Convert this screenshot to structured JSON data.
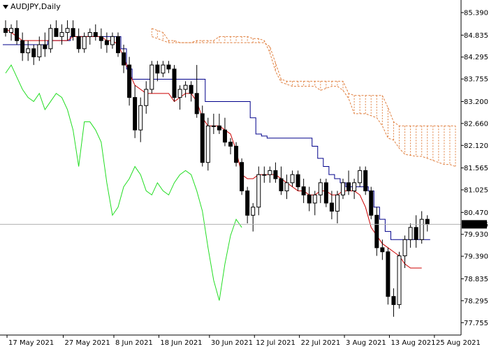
{
  "header": {
    "symbol_label": "AUDJPY,Daily"
  },
  "colors": {
    "background": "#ffffff",
    "axis": "#000000",
    "kijun": "#00008b",
    "tenkan": "#cc0000",
    "chikou": "#22dd22",
    "cloud": "#e08040",
    "current_line": "#b0b0b0",
    "price_box": "#000000"
  },
  "chart_data": {
    "type": "candlestick",
    "title": "AUDJPY,Daily",
    "current_price": 80.176,
    "current_price_label": "80.176",
    "ylim": [
      77.45,
      85.7
    ],
    "y_ticks": [
      "85.390",
      "84.835",
      "84.295",
      "83.755",
      "83.200",
      "82.660",
      "82.120",
      "81.565",
      "81.025",
      "80.470",
      "79.930",
      "79.390",
      "78.835",
      "78.295",
      "77.755"
    ],
    "x_tick_labels": [
      "17 May 2021",
      "27 May 2021",
      "8 Jun 2021",
      "18 Jun 2021",
      "30 Jun 2021",
      "12 Jul 2021",
      "22 Jul 2021",
      "3 Aug 2021",
      "13 Aug 2021",
      "25 Aug 2021"
    ],
    "x_tick_index": [
      1,
      11,
      20,
      28,
      37,
      45,
      53,
      61,
      69,
      77
    ],
    "candles_ohlc": [
      [
        85.0,
        85.2,
        84.8,
        84.9
      ],
      [
        84.9,
        85.1,
        84.7,
        85.0
      ],
      [
        85.0,
        85.2,
        84.6,
        84.7
      ],
      [
        84.7,
        84.9,
        84.2,
        84.4
      ],
      [
        84.4,
        84.7,
        84.2,
        84.5
      ],
      [
        84.5,
        84.6,
        84.1,
        84.3
      ],
      [
        84.3,
        84.8,
        84.2,
        84.6
      ],
      [
        84.6,
        84.9,
        84.3,
        84.5
      ],
      [
        84.5,
        85.1,
        84.4,
        85.0
      ],
      [
        85.0,
        85.2,
        84.8,
        84.8
      ],
      [
        84.8,
        85.1,
        84.6,
        84.9
      ],
      [
        84.9,
        85.2,
        84.7,
        85.0
      ],
      [
        85.0,
        85.2,
        84.7,
        84.8
      ],
      [
        84.8,
        85.0,
        84.4,
        84.5
      ],
      [
        84.5,
        84.9,
        84.4,
        84.8
      ],
      [
        84.8,
        85.0,
        84.6,
        84.9
      ],
      [
        84.9,
        85.1,
        84.7,
        84.8
      ],
      [
        84.8,
        85.0,
        84.5,
        84.7
      ],
      [
        84.7,
        84.9,
        84.4,
        84.6
      ],
      [
        84.6,
        84.9,
        84.5,
        84.8
      ],
      [
        84.8,
        84.9,
        84.3,
        84.4
      ],
      [
        84.4,
        84.6,
        83.9,
        84.1
      ],
      [
        84.1,
        84.3,
        83.1,
        83.3
      ],
      [
        83.3,
        83.6,
        82.3,
        82.5
      ],
      [
        82.5,
        83.3,
        82.2,
        83.1
      ],
      [
        83.1,
        83.7,
        82.9,
        83.5
      ],
      [
        83.5,
        84.2,
        83.4,
        84.1
      ],
      [
        84.1,
        84.2,
        83.7,
        83.9
      ],
      [
        83.9,
        84.2,
        83.8,
        84.1
      ],
      [
        84.1,
        84.2,
        83.9,
        84.0
      ],
      [
        84.0,
        84.1,
        83.2,
        83.3
      ],
      [
        83.3,
        83.6,
        83.0,
        83.5
      ],
      [
        83.5,
        83.7,
        83.3,
        83.6
      ],
      [
        83.6,
        83.7,
        83.2,
        83.4
      ],
      [
        83.4,
        84.1,
        82.8,
        82.9
      ],
      [
        82.9,
        83.1,
        81.6,
        81.7
      ],
      [
        81.7,
        82.8,
        81.5,
        82.6
      ],
      [
        82.6,
        82.9,
        82.4,
        82.6
      ],
      [
        82.6,
        82.9,
        82.4,
        82.5
      ],
      [
        82.5,
        82.8,
        82.1,
        82.2
      ],
      [
        82.2,
        82.3,
        81.9,
        82.1
      ],
      [
        82.1,
        82.2,
        81.6,
        81.7
      ],
      [
        81.7,
        81.8,
        80.9,
        81.0
      ],
      [
        81.0,
        81.1,
        80.2,
        80.4
      ],
      [
        80.4,
        80.7,
        80.0,
        80.6
      ],
      [
        80.6,
        81.6,
        80.4,
        81.4
      ],
      [
        81.4,
        81.6,
        81.2,
        81.4
      ],
      [
        81.4,
        81.6,
        81.2,
        81.5
      ],
      [
        81.5,
        81.7,
        81.2,
        81.3
      ],
      [
        81.3,
        81.6,
        80.9,
        81.0
      ],
      [
        81.0,
        81.4,
        80.8,
        81.2
      ],
      [
        81.2,
        81.5,
        81.1,
        81.4
      ],
      [
        81.4,
        81.5,
        81.0,
        81.1
      ],
      [
        81.1,
        81.3,
        80.7,
        80.9
      ],
      [
        80.9,
        81.1,
        80.5,
        80.7
      ],
      [
        80.7,
        81.0,
        80.4,
        80.9
      ],
      [
        80.9,
        81.3,
        80.7,
        81.2
      ],
      [
        81.2,
        81.3,
        80.6,
        80.7
      ],
      [
        80.7,
        81.0,
        80.3,
        80.5
      ],
      [
        80.5,
        81.0,
        80.2,
        80.9
      ],
      [
        80.9,
        81.3,
        80.8,
        81.2
      ],
      [
        81.2,
        81.5,
        80.9,
        81.0
      ],
      [
        81.0,
        81.3,
        80.8,
        81.2
      ],
      [
        81.2,
        81.6,
        81.1,
        81.5
      ],
      [
        81.5,
        81.6,
        80.9,
        81.0
      ],
      [
        81.0,
        81.1,
        80.3,
        80.4
      ],
      [
        80.4,
        80.6,
        79.4,
        79.6
      ],
      [
        79.6,
        79.8,
        79.3,
        79.5
      ],
      [
        79.5,
        79.6,
        78.2,
        78.4
      ],
      [
        78.4,
        78.6,
        77.9,
        78.2
      ],
      [
        78.2,
        79.5,
        78.1,
        79.4
      ],
      [
        79.4,
        79.9,
        79.1,
        79.8
      ],
      [
        79.8,
        80.2,
        79.6,
        80.1
      ],
      [
        80.1,
        80.4,
        79.6,
        79.8
      ],
      [
        79.8,
        80.5,
        79.7,
        80.3
      ],
      [
        80.3,
        80.4,
        80.0,
        80.176
      ]
    ],
    "kijun_sen": [
      84.6,
      84.6,
      84.6,
      84.6,
      84.6,
      84.6,
      84.6,
      84.6,
      84.7,
      84.7,
      84.7,
      84.7,
      84.8,
      84.8,
      84.8,
      84.8,
      84.8,
      84.8,
      84.8,
      84.8,
      84.8,
      84.5,
      84.0,
      83.75,
      83.75,
      83.75,
      83.75,
      83.75,
      83.75,
      83.75,
      83.75,
      83.75,
      83.75,
      83.75,
      83.75,
      83.75,
      83.2,
      83.2,
      83.2,
      83.2,
      83.2,
      83.2,
      83.2,
      83.2,
      82.8,
      82.4,
      82.35,
      82.3,
      82.3,
      82.3,
      82.3,
      82.3,
      82.3,
      82.3,
      82.3,
      82.1,
      81.8,
      81.6,
      81.4,
      81.3,
      81.2,
      81.1,
      81.1,
      81.1,
      81.1,
      81.0,
      80.6,
      80.3,
      80.0,
      79.8,
      79.8,
      79.8,
      79.8,
      79.8,
      79.8,
      79.8
    ],
    "tenkan_sen": [
      85.0,
      84.9,
      84.8,
      84.7,
      84.7,
      84.7,
      84.7,
      84.7,
      84.7,
      84.7,
      84.7,
      84.7,
      84.8,
      84.8,
      84.8,
      84.8,
      84.8,
      84.8,
      84.7,
      84.7,
      84.6,
      84.3,
      83.9,
      83.6,
      83.5,
      83.4,
      83.4,
      83.4,
      83.4,
      83.4,
      83.2,
      83.3,
      83.4,
      83.4,
      83.2,
      82.8,
      82.6,
      82.6,
      82.6,
      82.5,
      82.4,
      82.0,
      81.4,
      81.3,
      81.3,
      81.4,
      81.4,
      81.4,
      81.4,
      81.3,
      81.2,
      81.1,
      81.0,
      81.0,
      80.9,
      80.9,
      81.0,
      81.0,
      80.9,
      80.9,
      81.0,
      81.0,
      81.0,
      80.9,
      80.6,
      80.1,
      79.9,
      79.7,
      79.6,
      79.5,
      79.4,
      79.2,
      79.1,
      79.1,
      79.1
    ],
    "chikou_span": [
      83.9,
      84.1,
      83.8,
      83.5,
      83.3,
      83.2,
      83.4,
      83.0,
      83.2,
      83.4,
      83.3,
      83.0,
      82.5,
      81.6,
      82.7,
      82.7,
      82.5,
      82.2,
      81.2,
      80.4,
      80.6,
      81.1,
      81.3,
      81.6,
      81.4,
      81.0,
      80.9,
      81.2,
      81.0,
      80.9,
      81.2,
      81.4,
      81.5,
      81.4,
      81.0,
      80.5,
      79.6,
      78.8,
      78.3,
      79.2,
      79.9,
      80.3,
      80.1
    ]
  }
}
